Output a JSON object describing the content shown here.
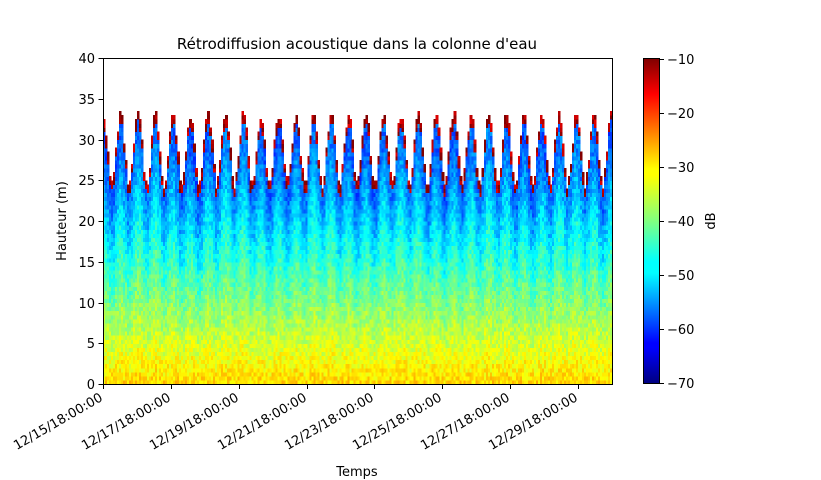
{
  "chart_data": {
    "type": "heatmap",
    "title": "Rétrodiffusion acoustique dans la colonne d'eau",
    "xlabel": "Temps",
    "ylabel": "Hauteur (m)",
    "x_range": [
      "2022-12-15 18:00:00",
      "2022-12-30 18:00:00"
    ],
    "x_tick_labels": [
      "12/15/18:00:00",
      "12/17/18:00:00",
      "12/19/18:00:00",
      "12/21/18:00:00",
      "12/23/18:00:00",
      "12/25/18:00:00",
      "12/27/18:00:00",
      "12/29/18:00:00"
    ],
    "ylim": [
      0,
      40
    ],
    "y_ticks": [
      0,
      5,
      10,
      15,
      20,
      25,
      30,
      35,
      40
    ],
    "colorbar": {
      "label": "dB",
      "range": [
        -70,
        -10
      ],
      "ticks": [
        -70,
        -60,
        -50,
        -40,
        -30,
        -20,
        -10
      ],
      "colormap": "jet"
    },
    "water_surface_height_m": {
      "mean_level": 24.5,
      "tidal_peak_range": [
        31,
        35
      ],
      "tide_cycle_hours": 12.4
    },
    "backscatter_db": {
      "near_bottom": -30,
      "mid_column": -42,
      "near_surface": -55,
      "surface_echo": -12
    }
  }
}
